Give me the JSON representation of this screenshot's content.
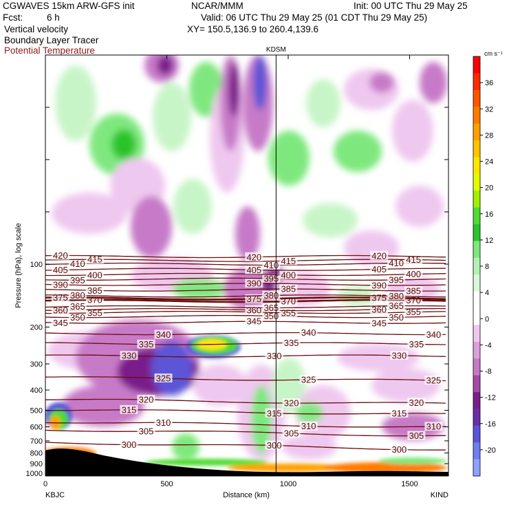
{
  "header": {
    "model": "CGWAVES 15km ARW-GFS init",
    "fcst_label": "Fcst:",
    "fcst_value": "6 h",
    "field1": "Vertical velocity",
    "field2": "Boundary Layer Tracer",
    "field3": "Potential Temperature",
    "center": "NCAR/MMM",
    "init": "Init: 00 UTC Thu 29 May 25",
    "valid": "Valid: 06 UTC Thu 29 May 25 (01 CDT Thu 29 May 25)",
    "xy": "XY= 150.5,136.9 to 260.4,139.6"
  },
  "colors": {
    "theta": "#6b0d0d",
    "up_light": "#c8f5c8",
    "up_mid": "#7ee87e",
    "up_strong": "#2cc42c",
    "down_light": "#efc8ef",
    "down_mid": "#c77ac7",
    "down_strong": "#7a1f8a",
    "down_vstrong": "#5b54d6"
  },
  "chart_data": {
    "type": "heatmap",
    "station_marker": "KDSM",
    "station_marker_x": 950,
    "xlabel": "Distance (km)",
    "ylabel": "Pressure (hPa), log scale",
    "x_start_label": "KBJC",
    "x_end_label": "KIND",
    "xlim": [
      0,
      1660
    ],
    "x_ticks": [
      0,
      500,
      1000,
      1500
    ],
    "y_scale": "log",
    "y_ticks": [
      100,
      200,
      300,
      400,
      500,
      600,
      700,
      800,
      900,
      1000
    ],
    "colorbar": {
      "unit": "cm s⁻¹",
      "ticks": [
        36,
        32,
        28,
        24,
        20,
        16,
        12,
        8,
        4,
        0,
        -4,
        -8,
        -12,
        -16,
        -20
      ],
      "colors": [
        "#ff0000",
        "#ff2a00",
        "#ff5500",
        "#ff7b00",
        "#ffa000",
        "#ffc400",
        "#ffe800",
        "#e0ff00",
        "#a0f000",
        "#4fdc32",
        "#2cc42c",
        "#7ee87e",
        "#b4f0b4",
        "#d8f8d8",
        "#ffffff",
        "#ffffff",
        "#efc8ef",
        "#dca0dc",
        "#c77ac7",
        "#a54aa5",
        "#7a1f8a",
        "#6a2fa8",
        "#5b54d6",
        "#6f7ef0",
        "#8ea3ff"
      ]
    },
    "theta_contours": [
      {
        "label": "300",
        "pressure": 740
      },
      {
        "label": "305",
        "pressure": 640
      },
      {
        "label": "310",
        "pressure": 585
      },
      {
        "label": "315",
        "pressure": 510
      },
      {
        "label": "320",
        "pressure": 455
      },
      {
        "label": "325",
        "pressure": 355
      },
      {
        "label": "330",
        "pressure": 275
      },
      {
        "label": "335",
        "pressure": 240
      },
      {
        "label": "340",
        "pressure": 215
      },
      {
        "label": "345",
        "pressure": 190
      },
      {
        "label": "350",
        "pressure": 178
      },
      {
        "label": "355",
        "pressure": 170
      },
      {
        "label": "360",
        "pressure": 165
      },
      {
        "label": "365",
        "pressure": 160
      },
      {
        "label": "370",
        "pressure": 150
      },
      {
        "label": "375",
        "pressure": 146
      },
      {
        "label": "380",
        "pressure": 142
      },
      {
        "label": "385",
        "pressure": 133
      },
      {
        "label": "390",
        "pressure": 125
      },
      {
        "label": "395",
        "pressure": 118
      },
      {
        "label": "400",
        "pressure": 112
      },
      {
        "label": "405",
        "pressure": 106
      },
      {
        "label": "410",
        "pressure": 100
      },
      {
        "label": "415",
        "pressure": 96
      },
      {
        "label": "420",
        "pressure": 92
      }
    ]
  }
}
